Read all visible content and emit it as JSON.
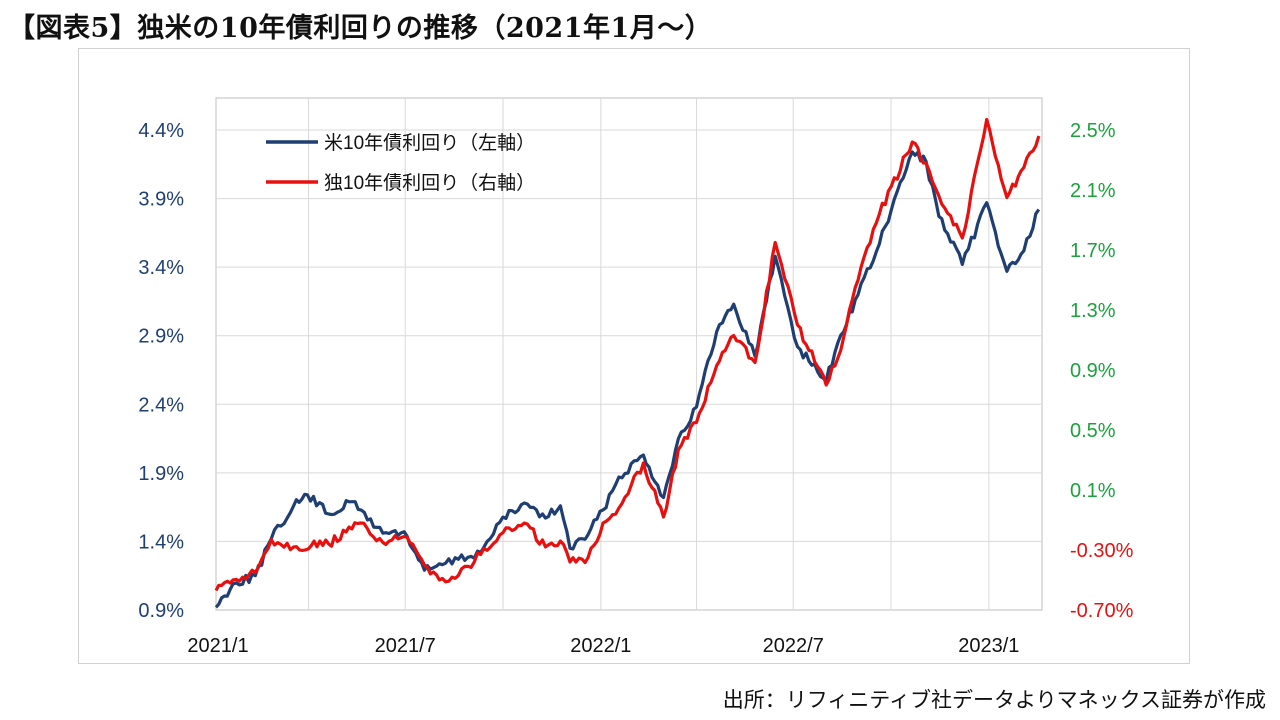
{
  "header": {
    "title": "【図表5】独米の10年債利回りの推移（2021年1月～）"
  },
  "footer": {
    "source": "出所：リフィニティブ社データよりマネックス証券が作成"
  },
  "colors": {
    "us": "#1f3f73",
    "de": "#e8100f",
    "left_axis": "#1f3f73",
    "right_pos": "#1aa33b",
    "right_neg": "#e8100f",
    "grid": "#d9d9d9"
  },
  "chart_data": {
    "type": "line",
    "title": "",
    "x_ticks": [
      "2021/1",
      "2021/7",
      "2022/1",
      "2022/7",
      "2023/1"
    ],
    "x_range": [
      "2021-01-04",
      "2023-02-20"
    ],
    "y_left": {
      "ticks": [
        "0.9%",
        "1.4%",
        "1.9%",
        "2.4%",
        "2.9%",
        "3.4%",
        "3.9%",
        "4.4%"
      ],
      "range": [
        0.9,
        4.4
      ],
      "unit": "%"
    },
    "y_right": {
      "ticks": [
        "-0.70%",
        "-0.30%",
        "0.1%",
        "0.5%",
        "0.9%",
        "1.3%",
        "1.7%",
        "2.1%",
        "2.5%"
      ],
      "range": [
        -0.7,
        2.5
      ],
      "unit": "%"
    },
    "grid": true,
    "legend_position": "top-left",
    "series": [
      {
        "name": "米10年債利回り（左軸）",
        "axis": "left",
        "points": [
          [
            "2021-01-04",
            0.92
          ],
          [
            "2021-01-20",
            1.09
          ],
          [
            "2021-02-10",
            1.15
          ],
          [
            "2021-02-25",
            1.42
          ],
          [
            "2021-03-18",
            1.66
          ],
          [
            "2021-03-31",
            1.74
          ],
          [
            "2021-04-20",
            1.6
          ],
          [
            "2021-05-12",
            1.69
          ],
          [
            "2021-06-10",
            1.46
          ],
          [
            "2021-06-30",
            1.47
          ],
          [
            "2021-07-19",
            1.19
          ],
          [
            "2021-08-05",
            1.23
          ],
          [
            "2021-08-20",
            1.27
          ],
          [
            "2021-09-10",
            1.32
          ],
          [
            "2021-09-28",
            1.54
          ],
          [
            "2021-10-21",
            1.68
          ],
          [
            "2021-11-10",
            1.57
          ],
          [
            "2021-11-24",
            1.66
          ],
          [
            "2021-12-03",
            1.35
          ],
          [
            "2021-12-20",
            1.45
          ],
          [
            "2022-01-03",
            1.63
          ],
          [
            "2022-01-18",
            1.87
          ],
          [
            "2022-02-10",
            2.03
          ],
          [
            "2022-03-01",
            1.72
          ],
          [
            "2022-03-15",
            2.15
          ],
          [
            "2022-04-01",
            2.38
          ],
          [
            "2022-04-20",
            2.93
          ],
          [
            "2022-05-06",
            3.13
          ],
          [
            "2022-05-26",
            2.75
          ],
          [
            "2022-06-14",
            3.48
          ],
          [
            "2022-07-05",
            2.82
          ],
          [
            "2022-08-01",
            2.57
          ],
          [
            "2022-08-12",
            2.85
          ],
          [
            "2022-08-31",
            3.2
          ],
          [
            "2022-09-20",
            3.57
          ],
          [
            "2022-10-21",
            4.24
          ],
          [
            "2022-11-03",
            4.17
          ],
          [
            "2022-11-15",
            3.77
          ],
          [
            "2022-12-07",
            3.42
          ],
          [
            "2022-12-30",
            3.87
          ],
          [
            "2023-01-18",
            3.37
          ],
          [
            "2023-02-03",
            3.52
          ],
          [
            "2023-02-17",
            3.82
          ]
        ]
      },
      {
        "name": "独10年債利回り（右軸）",
        "axis": "right",
        "points": [
          [
            "2021-01-04",
            -0.57
          ],
          [
            "2021-01-20",
            -0.5
          ],
          [
            "2021-02-10",
            -0.45
          ],
          [
            "2021-02-25",
            -0.23
          ],
          [
            "2021-03-18",
            -0.28
          ],
          [
            "2021-04-20",
            -0.26
          ],
          [
            "2021-05-20",
            -0.12
          ],
          [
            "2021-06-10",
            -0.25
          ],
          [
            "2021-06-30",
            -0.21
          ],
          [
            "2021-07-19",
            -0.4
          ],
          [
            "2021-08-05",
            -0.49
          ],
          [
            "2021-08-20",
            -0.47
          ],
          [
            "2021-09-10",
            -0.33
          ],
          [
            "2021-09-28",
            -0.2
          ],
          [
            "2021-10-21",
            -0.12
          ],
          [
            "2021-11-10",
            -0.28
          ],
          [
            "2021-11-24",
            -0.24
          ],
          [
            "2021-12-03",
            -0.38
          ],
          [
            "2021-12-20",
            -0.35
          ],
          [
            "2022-01-03",
            -0.12
          ],
          [
            "2022-01-18",
            -0.02
          ],
          [
            "2022-02-10",
            0.28
          ],
          [
            "2022-03-01",
            -0.08
          ],
          [
            "2022-03-15",
            0.37
          ],
          [
            "2022-04-01",
            0.55
          ],
          [
            "2022-04-20",
            0.93
          ],
          [
            "2022-05-06",
            1.13
          ],
          [
            "2022-05-26",
            0.95
          ],
          [
            "2022-06-14",
            1.75
          ],
          [
            "2022-07-05",
            1.2
          ],
          [
            "2022-08-01",
            0.8
          ],
          [
            "2022-08-12",
            0.98
          ],
          [
            "2022-08-31",
            1.5
          ],
          [
            "2022-09-20",
            1.94
          ],
          [
            "2022-10-21",
            2.42
          ],
          [
            "2022-11-03",
            2.28
          ],
          [
            "2022-11-15",
            2.06
          ],
          [
            "2022-12-07",
            1.78
          ],
          [
            "2022-12-30",
            2.57
          ],
          [
            "2023-01-18",
            2.05
          ],
          [
            "2023-02-03",
            2.25
          ],
          [
            "2023-02-17",
            2.46
          ]
        ]
      }
    ]
  }
}
